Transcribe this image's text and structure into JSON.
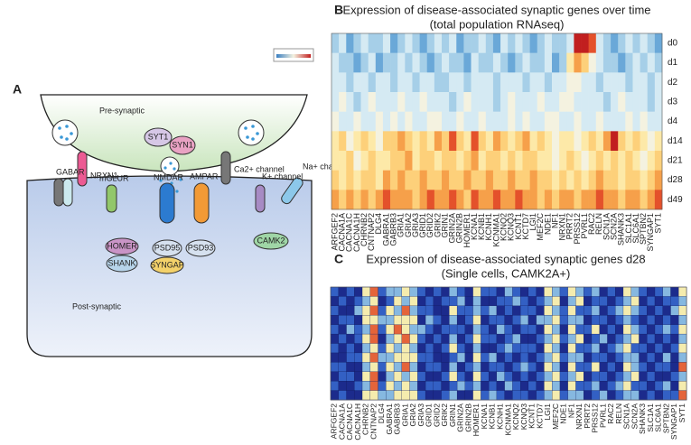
{
  "diagram": {
    "panel": "A",
    "pre": "Pre-synaptic",
    "post": "Post-synaptic",
    "syt1": "SYT1",
    "syn1": "SYN1",
    "nrxn1": "NRXN1",
    "ca": "Ca2+ channel",
    "gabar": "GABAR",
    "mglur": "mGLUR",
    "nmdar": "NMDAR",
    "ampar": "AMPAR",
    "k": "K+ channel",
    "na": "Na+ channel",
    "homer": "HOMER",
    "shank": "SHANK",
    "psd95": "PSD95",
    "psd93": "PSD93",
    "syngap": "SYNGAP",
    "camk2": "CAMK2"
  },
  "chart_data": [
    {
      "type": "heatmap",
      "panel": "B",
      "title": "Expression of disease-associated synaptic genes over time",
      "subtitle": "(total population RNAseq)",
      "categories": [
        "ARFGEF2",
        "CACNA1A",
        "CACNA1C",
        "CACNA1H",
        "CHRNB2",
        "CNTNAP2",
        "DLG4",
        "GABRA1",
        "GABRB3",
        "GRIA1",
        "GRIA2",
        "GRIA3",
        "GRID1",
        "GRID2",
        "GRIK2",
        "GRIN1",
        "GRIN2A",
        "GRIN2B",
        "HOMER1",
        "KCNA1",
        "KCNB1",
        "KCNH1",
        "KCNMA1",
        "KCNQ2",
        "KCNQ3",
        "KCNT1",
        "KCTD7",
        "LGI1",
        "MEF2C",
        "NDE1",
        "NF1",
        "NRXN1",
        "PRRT2",
        "PRSS12",
        "PVRL1",
        "RAC2",
        "RELN",
        "SCN1A",
        "SCN2A",
        "SHANK3",
        "SLC1A1",
        "SLC6A1",
        "SPTBN2",
        "SYNGAP1",
        "SYT1"
      ],
      "rows": [
        "d0",
        "d1",
        "d2",
        "d3",
        "d4",
        "d14",
        "d21",
        "d28",
        "d49"
      ],
      "zlim": [
        0,
        9
      ],
      "colors": [
        "#3a7fc1",
        "#6aa8d8",
        "#a6cfe8",
        "#d5eaf3",
        "#f4f2e0",
        "#fde9a8",
        "#fdd07a",
        "#f6a04a",
        "#e4512b",
        "#c11f1f"
      ],
      "values": [
        [
          2,
          3,
          1,
          2,
          3,
          2,
          2,
          3,
          1,
          2,
          3,
          2,
          1,
          2,
          3,
          2,
          3,
          1,
          2,
          2,
          3,
          2,
          1,
          3,
          2,
          3,
          2,
          1,
          2,
          3,
          2,
          2,
          3,
          9,
          9,
          8,
          3,
          2,
          1,
          2,
          3,
          2,
          3,
          2,
          1
        ],
        [
          3,
          2,
          2,
          1,
          2,
          3,
          1,
          2,
          2,
          3,
          2,
          3,
          2,
          1,
          2,
          3,
          2,
          2,
          1,
          3,
          2,
          2,
          3,
          2,
          1,
          2,
          3,
          2,
          2,
          3,
          1,
          2,
          5,
          7,
          6,
          4,
          3,
          2,
          2,
          1,
          2,
          3,
          2,
          3,
          2
        ],
        [
          3,
          3,
          2,
          3,
          3,
          2,
          3,
          3,
          2,
          3,
          3,
          2,
          3,
          3,
          2,
          2,
          3,
          3,
          2,
          3,
          3,
          3,
          2,
          3,
          3,
          3,
          2,
          3,
          3,
          2,
          3,
          3,
          4,
          4,
          3,
          3,
          2,
          3,
          3,
          3,
          2,
          3,
          3,
          2,
          3
        ],
        [
          3,
          4,
          3,
          2,
          3,
          4,
          3,
          3,
          3,
          4,
          3,
          3,
          4,
          3,
          3,
          3,
          2,
          3,
          4,
          3,
          3,
          3,
          2,
          3,
          4,
          3,
          3,
          3,
          4,
          3,
          3,
          4,
          4,
          3,
          3,
          3,
          3,
          2,
          3,
          4,
          3,
          3,
          3,
          2,
          3
        ],
        [
          4,
          3,
          3,
          4,
          3,
          3,
          4,
          3,
          4,
          3,
          4,
          3,
          3,
          4,
          4,
          3,
          3,
          4,
          3,
          3,
          4,
          3,
          3,
          3,
          4,
          3,
          4,
          3,
          3,
          4,
          4,
          3,
          3,
          4,
          3,
          3,
          4,
          3,
          3,
          3,
          4,
          3,
          4,
          3,
          3
        ],
        [
          5,
          6,
          4,
          5,
          6,
          5,
          4,
          6,
          6,
          7,
          6,
          5,
          6,
          5,
          7,
          6,
          8,
          6,
          5,
          8,
          6,
          5,
          7,
          6,
          5,
          6,
          7,
          5,
          6,
          5,
          4,
          5,
          5,
          4,
          5,
          6,
          5,
          7,
          9,
          6,
          5,
          6,
          5,
          4,
          5
        ],
        [
          5,
          5,
          6,
          4,
          5,
          6,
          5,
          5,
          6,
          6,
          7,
          5,
          6,
          6,
          5,
          6,
          6,
          5,
          6,
          7,
          5,
          6,
          6,
          5,
          6,
          5,
          6,
          6,
          5,
          5,
          4,
          5,
          6,
          5,
          4,
          5,
          6,
          5,
          6,
          5,
          6,
          5,
          4,
          5,
          6
        ],
        [
          6,
          5,
          6,
          5,
          6,
          6,
          5,
          7,
          6,
          7,
          6,
          6,
          7,
          6,
          6,
          7,
          6,
          6,
          7,
          6,
          6,
          7,
          6,
          6,
          7,
          6,
          6,
          7,
          6,
          6,
          5,
          6,
          5,
          6,
          5,
          6,
          7,
          6,
          6,
          5,
          6,
          6,
          5,
          6,
          7
        ],
        [
          7,
          6,
          7,
          6,
          7,
          6,
          7,
          8,
          7,
          7,
          7,
          6,
          7,
          8,
          7,
          7,
          8,
          7,
          6,
          8,
          7,
          7,
          8,
          7,
          7,
          8,
          7,
          7,
          6,
          7,
          6,
          7,
          7,
          6,
          7,
          7,
          8,
          7,
          7,
          6,
          7,
          7,
          6,
          7,
          8
        ]
      ]
    },
    {
      "type": "heatmap",
      "panel": "C",
      "title": "Expression of disease-associated synaptic genes d28",
      "subtitle": "(Single cells, CAMK2A+)",
      "categories": [
        "ARFGEF2",
        "CACNA1A",
        "CACNA1C",
        "CACNA1H",
        "CHRNB2",
        "CNTNAP2",
        "DLG4",
        "GABRA1",
        "GABRB3",
        "GRIA1",
        "GRIA2",
        "GRIA3",
        "GRID1",
        "GRID2",
        "GRIK2",
        "GRIN1",
        "GRIN2A",
        "GRIN2B",
        "HOMER1",
        "KCNA1",
        "KCNB1",
        "KCNH1",
        "KCNMA1",
        "KCNQ2",
        "KCNQ3",
        "KCNT1",
        "KCTD7",
        "LGI1",
        "MEF2C",
        "NDE1",
        "NF1",
        "NRXN1",
        "PRRT2",
        "PRSS12",
        "PVRL1",
        "RAC2",
        "RELN",
        "SCN1A",
        "SCN2A",
        "SHANK3",
        "SLC1A1",
        "SLC6A1",
        "SPTBN2",
        "SYNGAP1",
        "SYT1"
      ],
      "zlim": [
        0,
        4
      ],
      "colors": [
        "#1c2b8c",
        "#3360c4",
        "#86b8e0",
        "#f5ecae",
        "#e4643a"
      ],
      "values": [
        [
          1,
          0,
          1,
          0,
          3,
          4,
          1,
          2,
          2,
          3,
          2,
          1,
          0,
          1,
          0,
          2,
          1,
          0,
          3,
          1,
          1,
          0,
          2,
          1,
          0,
          1,
          0,
          3,
          2,
          1,
          3,
          2,
          1,
          2,
          0,
          1,
          0,
          3,
          2,
          1,
          0,
          1,
          2,
          0,
          3
        ],
        [
          0,
          1,
          0,
          1,
          2,
          3,
          0,
          1,
          3,
          2,
          3,
          0,
          1,
          0,
          1,
          1,
          2,
          0,
          2,
          0,
          0,
          1,
          1,
          2,
          1,
          0,
          1,
          2,
          3,
          0,
          2,
          3,
          0,
          1,
          1,
          0,
          1,
          2,
          3,
          0,
          1,
          0,
          1,
          1,
          2
        ],
        [
          1,
          0,
          0,
          2,
          3,
          4,
          1,
          3,
          2,
          4,
          2,
          1,
          1,
          0,
          0,
          3,
          1,
          1,
          2,
          1,
          2,
          0,
          1,
          0,
          1,
          1,
          0,
          3,
          2,
          1,
          3,
          1,
          1,
          2,
          0,
          1,
          2,
          3,
          2,
          1,
          0,
          1,
          0,
          2,
          3
        ],
        [
          0,
          1,
          1,
          0,
          3,
          3,
          2,
          2,
          3,
          3,
          3,
          0,
          2,
          1,
          0,
          2,
          0,
          1,
          3,
          0,
          1,
          1,
          0,
          1,
          2,
          0,
          2,
          2,
          3,
          1,
          2,
          2,
          0,
          1,
          1,
          0,
          1,
          2,
          1,
          0,
          1,
          0,
          1,
          0,
          2
        ],
        [
          1,
          0,
          2,
          1,
          2,
          4,
          1,
          3,
          4,
          3,
          2,
          2,
          1,
          0,
          1,
          1,
          1,
          0,
          2,
          1,
          0,
          2,
          1,
          0,
          1,
          1,
          0,
          3,
          2,
          0,
          3,
          1,
          1,
          3,
          0,
          1,
          0,
          3,
          2,
          1,
          0,
          1,
          2,
          1,
          3
        ],
        [
          0,
          1,
          0,
          1,
          3,
          4,
          0,
          2,
          3,
          4,
          3,
          1,
          0,
          1,
          0,
          2,
          0,
          1,
          3,
          1,
          1,
          0,
          1,
          2,
          0,
          0,
          1,
          2,
          3,
          1,
          2,
          3,
          0,
          1,
          2,
          0,
          1,
          2,
          3,
          0,
          1,
          0,
          1,
          0,
          2
        ],
        [
          1,
          0,
          1,
          0,
          2,
          3,
          1,
          3,
          2,
          3,
          2,
          0,
          1,
          0,
          1,
          3,
          1,
          0,
          2,
          0,
          0,
          1,
          2,
          1,
          1,
          1,
          0,
          3,
          2,
          0,
          3,
          1,
          1,
          2,
          0,
          1,
          2,
          3,
          1,
          1,
          0,
          1,
          0,
          1,
          3
        ],
        [
          0,
          0,
          1,
          1,
          3,
          4,
          2,
          2,
          3,
          3,
          3,
          1,
          1,
          0,
          0,
          1,
          2,
          0,
          3,
          1,
          2,
          0,
          1,
          0,
          1,
          0,
          1,
          2,
          3,
          1,
          2,
          2,
          0,
          1,
          1,
          0,
          1,
          2,
          2,
          0,
          1,
          0,
          2,
          0,
          2
        ],
        [
          1,
          1,
          0,
          0,
          2,
          3,
          1,
          3,
          2,
          4,
          2,
          0,
          1,
          1,
          0,
          2,
          0,
          1,
          2,
          0,
          1,
          1,
          0,
          1,
          2,
          1,
          0,
          3,
          2,
          0,
          3,
          1,
          1,
          3,
          0,
          1,
          0,
          3,
          2,
          1,
          0,
          1,
          1,
          0,
          4
        ],
        [
          0,
          1,
          1,
          0,
          3,
          4,
          0,
          2,
          3,
          2,
          3,
          1,
          0,
          0,
          1,
          3,
          1,
          0,
          3,
          1,
          0,
          2,
          1,
          0,
          1,
          0,
          1,
          2,
          3,
          1,
          2,
          3,
          0,
          1,
          1,
          0,
          1,
          2,
          3,
          0,
          1,
          0,
          0,
          1,
          2
        ],
        [
          1,
          0,
          0,
          1,
          2,
          4,
          1,
          3,
          2,
          3,
          2,
          0,
          1,
          1,
          0,
          1,
          2,
          1,
          2,
          0,
          1,
          0,
          2,
          1,
          0,
          1,
          0,
          3,
          2,
          0,
          3,
          1,
          1,
          2,
          0,
          1,
          2,
          3,
          1,
          1,
          0,
          1,
          2,
          0,
          3
        ],
        [
          0,
          1,
          0,
          0,
          3,
          3,
          2,
          2,
          3,
          3,
          3,
          1,
          0,
          0,
          1,
          2,
          0,
          0,
          3,
          1,
          2,
          1,
          0,
          1,
          1,
          0,
          1,
          2,
          3,
          1,
          2,
          2,
          0,
          1,
          2,
          0,
          1,
          2,
          2,
          0,
          1,
          0,
          1,
          1,
          4
        ]
      ]
    }
  ]
}
